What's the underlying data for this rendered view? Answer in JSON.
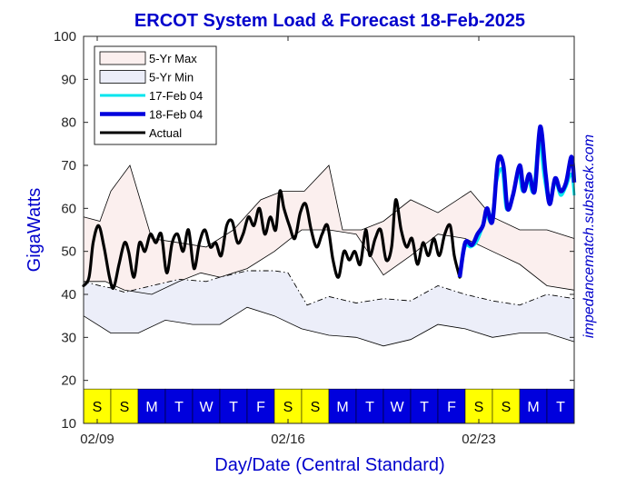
{
  "chart_data": {
    "type": "line",
    "title": "ERCOT System Load & Forecast 18-Feb-2025",
    "xlabel": "Day/Date (Central Standard)",
    "ylabel": "GigaWatts",
    "watermark": "impedancematch.substack.com",
    "ylim": [
      10,
      100
    ],
    "xlim": [
      0,
      18
    ],
    "yticks": [
      10,
      20,
      30,
      40,
      50,
      60,
      70,
      80,
      90,
      100
    ],
    "xtick_labels": [
      {
        "x": 0.5,
        "label": "02/09"
      },
      {
        "x": 7.5,
        "label": "02/16"
      },
      {
        "x": 14.5,
        "label": "02/23"
      }
    ],
    "grid": false,
    "legend_position": "top-left",
    "colors": {
      "title": "#0000CC",
      "axis_label": "#0000CC",
      "max_fill": "#FBEFEE",
      "min_fill": "#ECEEF9",
      "forecast_17": "#00E5EE",
      "forecast_18": "#0000DD",
      "actual": "#000000",
      "weekend": "#FFFF00",
      "weekday": "#0000DD"
    },
    "day_strip": {
      "range": [
        10,
        18
      ],
      "days": [
        {
          "label": "S",
          "weekend": true
        },
        {
          "label": "S",
          "weekend": true
        },
        {
          "label": "M",
          "weekend": false
        },
        {
          "label": "T",
          "weekend": false
        },
        {
          "label": "W",
          "weekend": false
        },
        {
          "label": "T",
          "weekend": false
        },
        {
          "label": "F",
          "weekend": false
        },
        {
          "label": "S",
          "weekend": true
        },
        {
          "label": "S",
          "weekend": true
        },
        {
          "label": "M",
          "weekend": false
        },
        {
          "label": "T",
          "weekend": false
        },
        {
          "label": "W",
          "weekend": false
        },
        {
          "label": "T",
          "weekend": false
        },
        {
          "label": "F",
          "weekend": false
        },
        {
          "label": "S",
          "weekend": true
        },
        {
          "label": "S",
          "weekend": true
        },
        {
          "label": "M",
          "weekend": false
        },
        {
          "label": "T",
          "weekend": false
        }
      ]
    },
    "legend": [
      {
        "label": "5-Yr Max",
        "kind": "patch",
        "color": "#FBEFEE"
      },
      {
        "label": "5-Yr Min",
        "kind": "patch",
        "color": "#ECEEF9"
      },
      {
        "label": "17-Feb 04",
        "kind": "line",
        "color": "#00E5EE"
      },
      {
        "label": "18-Feb 04",
        "kind": "line",
        "color": "#0000DD"
      },
      {
        "label": "Actual",
        "kind": "line",
        "color": "#000000"
      }
    ],
    "series": [
      {
        "name": "5-Yr Max",
        "role": "max_upper",
        "points": [
          [
            0,
            58
          ],
          [
            0.6,
            57
          ],
          [
            1,
            64
          ],
          [
            1.7,
            70
          ],
          [
            2.5,
            53
          ],
          [
            3.5,
            52
          ],
          [
            4.5,
            51
          ],
          [
            5.5,
            55
          ],
          [
            6.5,
            62
          ],
          [
            7.3,
            64
          ],
          [
            8.1,
            64
          ],
          [
            9,
            70
          ],
          [
            9.5,
            55
          ],
          [
            10.2,
            55
          ],
          [
            11,
            57
          ],
          [
            12,
            62
          ],
          [
            13,
            59
          ],
          [
            14.2,
            64
          ],
          [
            15,
            58
          ],
          [
            16,
            55
          ],
          [
            17,
            55
          ],
          [
            18,
            53
          ]
        ]
      },
      {
        "name": "5-Yr Max",
        "role": "max_lower",
        "points": [
          [
            0,
            43
          ],
          [
            0.8,
            43
          ],
          [
            1.5,
            41
          ],
          [
            2.5,
            40
          ],
          [
            3.5,
            43
          ],
          [
            4.3,
            45
          ],
          [
            5,
            44
          ],
          [
            6,
            46
          ],
          [
            7,
            50
          ],
          [
            8,
            55
          ],
          [
            9,
            55
          ],
          [
            10,
            54
          ],
          [
            11,
            44.5
          ],
          [
            12,
            49
          ],
          [
            13,
            54
          ],
          [
            14,
            53
          ],
          [
            15,
            50
          ],
          [
            16,
            47
          ],
          [
            17,
            42
          ],
          [
            18,
            41
          ]
        ]
      },
      {
        "name": "5-Yr Min",
        "role": "min_upper",
        "points": [
          [
            0,
            43
          ],
          [
            0.6,
            42
          ],
          [
            1,
            41.5
          ],
          [
            1.5,
            40.5
          ],
          [
            2.5,
            42
          ],
          [
            3.5,
            43.5
          ],
          [
            4.5,
            43
          ],
          [
            5,
            44
          ],
          [
            6,
            45.5
          ],
          [
            7,
            45.5
          ],
          [
            7.5,
            45
          ],
          [
            8.2,
            37.5
          ],
          [
            9,
            39.5
          ],
          [
            10,
            38
          ],
          [
            11,
            39
          ],
          [
            12,
            38.5
          ],
          [
            13,
            42
          ],
          [
            14,
            40
          ],
          [
            15,
            38.5
          ],
          [
            16,
            37.5
          ],
          [
            17,
            40
          ],
          [
            18,
            39
          ]
        ]
      },
      {
        "name": "5-Yr Min",
        "role": "min_lower",
        "points": [
          [
            0,
            35
          ],
          [
            1,
            31
          ],
          [
            2,
            31
          ],
          [
            3,
            34
          ],
          [
            4,
            33
          ],
          [
            5,
            33
          ],
          [
            6,
            37
          ],
          [
            7,
            35
          ],
          [
            8,
            32
          ],
          [
            9,
            30.5
          ],
          [
            10,
            30
          ],
          [
            11,
            28
          ],
          [
            12,
            29.5
          ],
          [
            13,
            33
          ],
          [
            14,
            32
          ],
          [
            15,
            30
          ],
          [
            16,
            31
          ],
          [
            17,
            31
          ],
          [
            18,
            29
          ]
        ]
      },
      {
        "name": "Actual",
        "role": "actual",
        "points": [
          [
            0,
            42
          ],
          [
            0.2,
            44
          ],
          [
            0.35,
            52
          ],
          [
            0.55,
            56
          ],
          [
            0.75,
            51
          ],
          [
            0.95,
            44
          ],
          [
            1.1,
            41.5
          ],
          [
            1.3,
            47
          ],
          [
            1.5,
            52
          ],
          [
            1.65,
            50
          ],
          [
            1.85,
            44
          ],
          [
            2.05,
            52
          ],
          [
            2.25,
            50
          ],
          [
            2.45,
            54
          ],
          [
            2.65,
            52
          ],
          [
            2.85,
            54
          ],
          [
            3.05,
            45
          ],
          [
            3.25,
            52
          ],
          [
            3.45,
            54
          ],
          [
            3.65,
            50
          ],
          [
            3.85,
            55
          ],
          [
            4.05,
            46
          ],
          [
            4.25,
            52
          ],
          [
            4.45,
            55
          ],
          [
            4.65,
            51
          ],
          [
            4.85,
            52
          ],
          [
            5.05,
            49
          ],
          [
            5.25,
            56
          ],
          [
            5.45,
            57
          ],
          [
            5.65,
            52
          ],
          [
            5.85,
            54
          ],
          [
            6.05,
            58
          ],
          [
            6.25,
            56
          ],
          [
            6.45,
            60
          ],
          [
            6.65,
            54
          ],
          [
            6.85,
            58
          ],
          [
            7.05,
            55
          ],
          [
            7.2,
            64
          ],
          [
            7.35,
            60
          ],
          [
            7.55,
            56
          ],
          [
            7.75,
            53
          ],
          [
            7.95,
            59
          ],
          [
            8.15,
            61
          ],
          [
            8.35,
            55
          ],
          [
            8.55,
            51
          ],
          [
            8.75,
            54
          ],
          [
            8.95,
            56
          ],
          [
            9.15,
            48
          ],
          [
            9.35,
            44
          ],
          [
            9.55,
            50
          ],
          [
            9.75,
            48
          ],
          [
            9.95,
            50
          ],
          [
            10.15,
            47
          ],
          [
            10.35,
            55
          ],
          [
            10.5,
            49
          ],
          [
            10.7,
            53
          ],
          [
            10.9,
            55
          ],
          [
            11.1,
            48
          ],
          [
            11.3,
            51
          ],
          [
            11.45,
            62
          ],
          [
            11.65,
            55
          ],
          [
            11.85,
            51
          ],
          [
            12.05,
            53
          ],
          [
            12.25,
            47
          ],
          [
            12.45,
            52
          ],
          [
            12.65,
            49
          ],
          [
            12.85,
            53
          ],
          [
            13.05,
            49
          ],
          [
            13.25,
            54
          ],
          [
            13.45,
            56
          ],
          [
            13.6,
            49
          ],
          [
            13.8,
            44
          ]
        ]
      },
      {
        "name": "17-Feb 04",
        "role": "forecast",
        "points": [
          [
            13.8,
            44
          ],
          [
            14.0,
            51
          ],
          [
            14.2,
            51
          ],
          [
            14.4,
            52
          ],
          [
            14.6,
            55
          ],
          [
            14.75,
            59
          ],
          [
            14.95,
            57
          ],
          [
            15.15,
            66
          ],
          [
            15.35,
            69
          ],
          [
            15.5,
            60
          ],
          [
            15.7,
            62
          ],
          [
            15.95,
            68
          ],
          [
            16.1,
            64
          ],
          [
            16.3,
            67
          ],
          [
            16.5,
            64
          ],
          [
            16.7,
            76
          ],
          [
            16.9,
            67
          ],
          [
            17.1,
            61
          ],
          [
            17.3,
            66
          ],
          [
            17.5,
            63
          ],
          [
            17.7,
            65
          ],
          [
            17.9,
            68
          ],
          [
            18.0,
            63
          ]
        ]
      },
      {
        "name": "18-Feb 04",
        "role": "forecast",
        "points": [
          [
            13.8,
            44
          ],
          [
            14.0,
            52
          ],
          [
            14.25,
            51.5
          ],
          [
            14.45,
            54
          ],
          [
            14.65,
            56
          ],
          [
            14.8,
            60
          ],
          [
            15.0,
            57
          ],
          [
            15.2,
            71
          ],
          [
            15.4,
            70
          ],
          [
            15.55,
            60
          ],
          [
            15.75,
            63
          ],
          [
            16.0,
            70
          ],
          [
            16.15,
            64
          ],
          [
            16.35,
            68
          ],
          [
            16.55,
            64
          ],
          [
            16.75,
            79
          ],
          [
            16.95,
            68
          ],
          [
            17.1,
            61
          ],
          [
            17.3,
            67
          ],
          [
            17.5,
            64
          ],
          [
            17.7,
            66
          ],
          [
            17.9,
            72
          ],
          [
            18.0,
            66
          ]
        ]
      }
    ]
  }
}
